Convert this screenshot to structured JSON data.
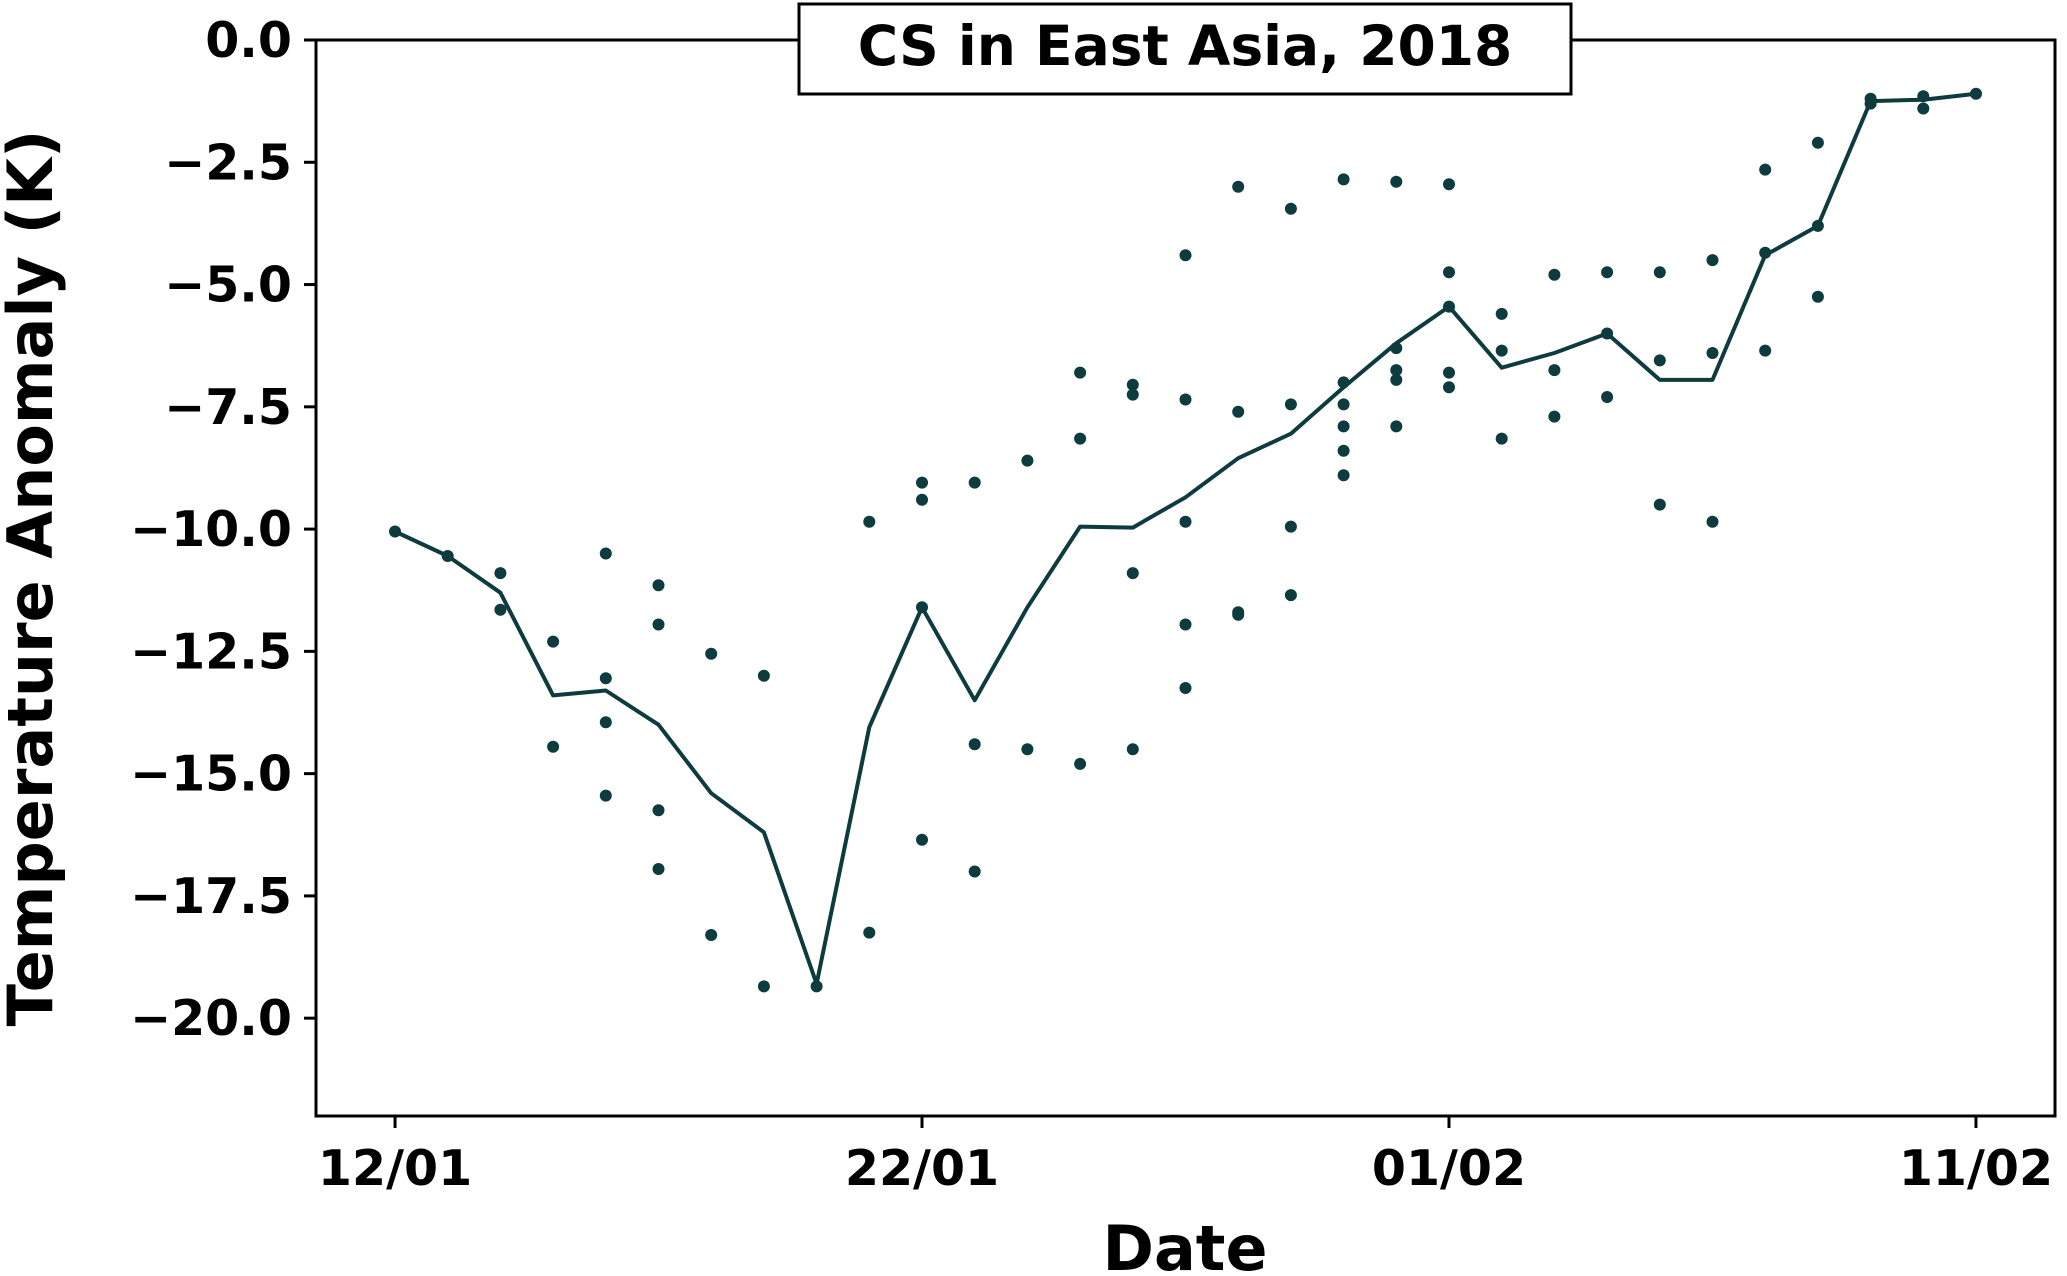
{
  "chart_data": {
    "type": "line",
    "title": "CS in East Asia, 2018",
    "xlabel": "Date",
    "ylabel": "Temperature Anomaly (K)",
    "x_ticks": [
      {
        "day": 0,
        "label": "12/01"
      },
      {
        "day": 10,
        "label": "22/01"
      },
      {
        "day": 20,
        "label": "01/02"
      },
      {
        "day": 30,
        "label": "11/02"
      }
    ],
    "y_ticks": [
      {
        "value": 0,
        "label": "0.0"
      },
      {
        "value": -2.5,
        "label": "−2.5"
      },
      {
        "value": -5,
        "label": "−5.0"
      },
      {
        "value": -7.5,
        "label": "−7.5"
      },
      {
        "value": -10,
        "label": "−10.0"
      },
      {
        "value": -12.5,
        "label": "−12.5"
      },
      {
        "value": -15,
        "label": "−15.0"
      },
      {
        "value": -17.5,
        "label": "−17.5"
      },
      {
        "value": -20,
        "label": "−20.0"
      }
    ],
    "xlim": [
      -1.5,
      31.5
    ],
    "ylim": [
      -22,
      0
    ],
    "grid": false,
    "color": "#0d3b3e",
    "series": [
      {
        "type": "line",
        "x": [
          0,
          1,
          2,
          3,
          4,
          5,
          6,
          7,
          8,
          9,
          10,
          11,
          12,
          13,
          14,
          15,
          16,
          17,
          18,
          19,
          20,
          21,
          22,
          23,
          24,
          25,
          26,
          27,
          28,
          29,
          30
        ],
        "y": [
          -10.05,
          -10.55,
          -11.3,
          -13.4,
          -13.3,
          -14.0,
          -15.4,
          -16.2,
          -19.3,
          -14.05,
          -11.6,
          -13.5,
          -11.6,
          -9.95,
          -9.97,
          -9.35,
          -8.55,
          -8.05,
          -7.1,
          -6.2,
          -5.45,
          -6.7,
          -6.4,
          -6.0,
          -6.95,
          -6.95,
          -4.4,
          -3.8,
          -1.25,
          -1.22,
          -1.1
        ]
      },
      {
        "type": "scatter",
        "x": [
          0,
          1,
          2,
          2,
          3,
          3,
          4,
          4,
          4,
          4,
          5,
          5,
          5,
          5,
          6,
          6,
          7,
          7,
          8,
          9,
          9,
          10,
          10,
          10,
          10,
          11,
          11,
          11,
          12,
          12,
          13,
          13,
          13,
          14,
          14,
          14,
          14,
          15,
          15,
          15,
          15,
          15,
          16,
          16,
          16,
          16,
          17,
          17,
          17,
          17,
          18,
          18,
          18,
          18,
          18,
          18,
          19,
          19,
          19,
          19,
          19,
          20,
          20,
          20,
          20,
          20,
          21,
          21,
          21,
          22,
          22,
          22,
          23,
          23,
          23,
          24,
          24,
          24,
          25,
          25,
          25,
          26,
          26,
          26,
          27,
          27,
          27,
          28,
          28,
          29,
          29,
          30
        ],
        "y": [
          -10.05,
          -10.55,
          -10.9,
          -11.65,
          -12.3,
          -14.45,
          -10.5,
          -13.05,
          -13.95,
          -15.45,
          -11.15,
          -11.95,
          -15.75,
          -16.95,
          -12.55,
          -18.3,
          -13.0,
          -19.35,
          -19.35,
          -9.85,
          -18.25,
          -9.05,
          -9.4,
          -16.35,
          -11.6,
          -9.05,
          -14.4,
          -17.0,
          -8.6,
          -14.5,
          -6.8,
          -8.15,
          -14.8,
          -7.05,
          -7.25,
          -10.9,
          -14.5,
          -4.4,
          -7.35,
          -9.85,
          -11.95,
          -13.25,
          -3.0,
          -7.6,
          -11.7,
          -11.75,
          -3.45,
          -7.45,
          -9.95,
          -11.35,
          -2.85,
          -7.0,
          -7.45,
          -7.9,
          -8.4,
          -8.9,
          -2.9,
          -6.3,
          -6.75,
          -6.95,
          -7.9,
          -2.95,
          -4.75,
          -6.8,
          -7.1,
          -5.45,
          -5.6,
          -6.35,
          -8.15,
          -4.8,
          -6.75,
          -7.7,
          -4.75,
          -7.3,
          -6.0,
          -4.75,
          -6.55,
          -9.5,
          -4.5,
          -6.4,
          -9.85,
          -2.65,
          -4.35,
          -6.35,
          -2.1,
          -3.8,
          -5.25,
          -1.2,
          -1.3,
          -1.15,
          -1.4,
          -1.1
        ]
      }
    ]
  }
}
